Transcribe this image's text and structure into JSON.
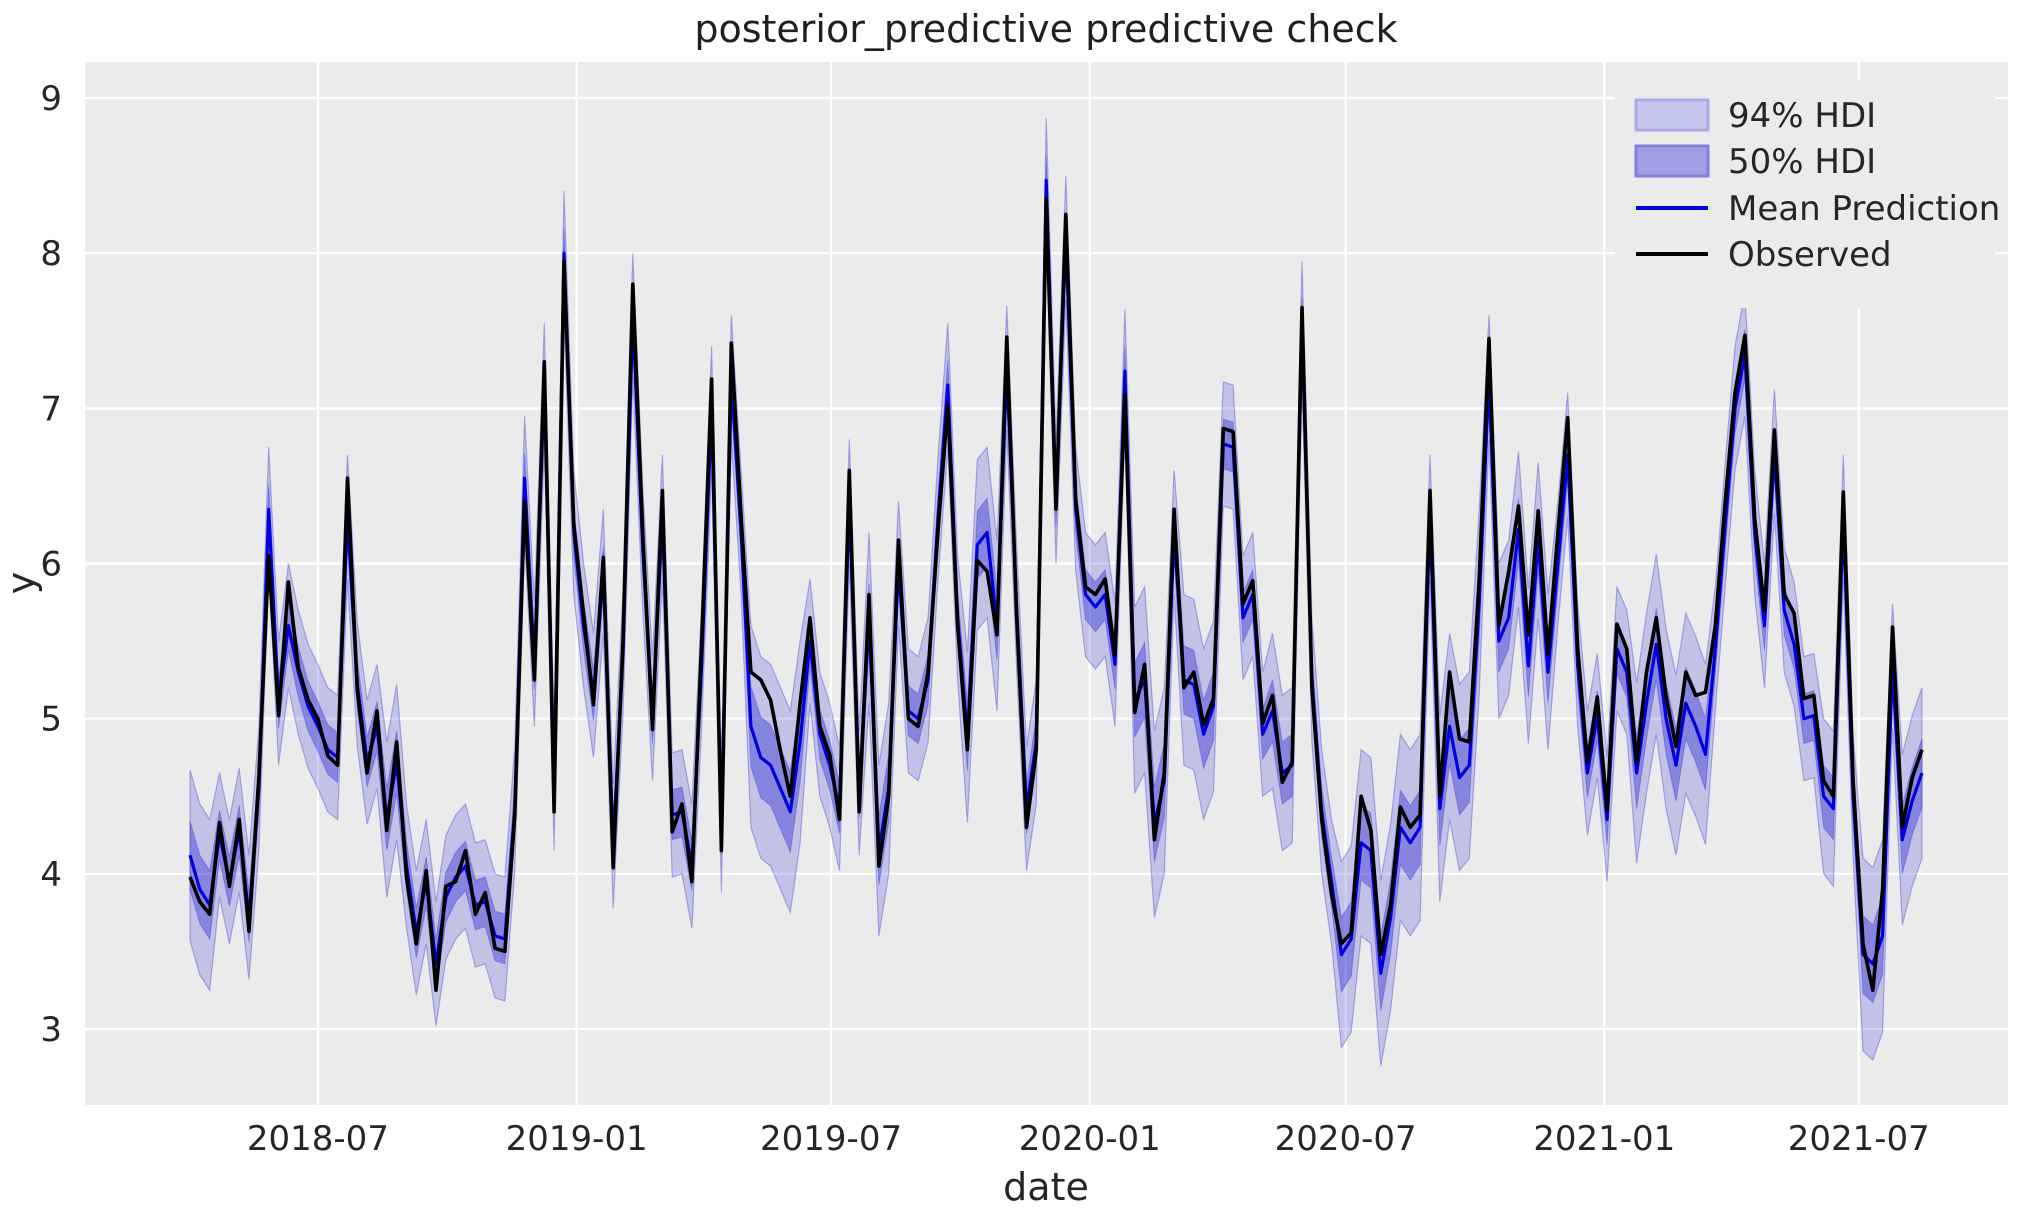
{
  "chart_data": {
    "type": "line",
    "title": "posterior_predictive predictive check",
    "xlabel": "date",
    "ylabel": "y",
    "x_tick_labels": [
      "2018-07",
      "2019-01",
      "2019-07",
      "2020-01",
      "2020-07",
      "2021-01",
      "2021-07"
    ],
    "y_tick_labels": [
      "3",
      "4",
      "5",
      "6",
      "7",
      "8",
      "9"
    ],
    "y_ticks": [
      3,
      4,
      5,
      6,
      7,
      8,
      9
    ],
    "ylim": [
      2.5,
      9.25
    ],
    "grid": "on",
    "legend_position": "upper right",
    "series_meta": {
      "start_date": "2018-04-01",
      "frequency_days": 7,
      "n_points": 177
    },
    "legend": [
      {
        "label": "94% HDI",
        "type": "band"
      },
      {
        "label": "50% HDI",
        "type": "band"
      },
      {
        "label": "Mean Prediction",
        "type": "line"
      },
      {
        "label": "Observed",
        "type": "line"
      }
    ],
    "series": [
      {
        "name": "Observed",
        "values": [
          3.98,
          3.82,
          3.74,
          4.33,
          3.92,
          4.35,
          3.63,
          4.63,
          6.05,
          5.02,
          5.88,
          5.33,
          5.12,
          5.0,
          4.76,
          4.7,
          6.55,
          5.18,
          4.65,
          5.05,
          4.28,
          4.85,
          3.98,
          3.55,
          4.02,
          3.25,
          3.92,
          3.95,
          4.15,
          3.74,
          3.88,
          3.52,
          3.5,
          4.38,
          6.4,
          5.25,
          7.3,
          4.4,
          7.95,
          6.25,
          5.67,
          5.09,
          6.04,
          4.04,
          5.5,
          7.8,
          6.2,
          4.93,
          6.47,
          4.27,
          4.45,
          3.95,
          5.5,
          7.19,
          4.15,
          7.42,
          6.3,
          5.3,
          5.25,
          5.12,
          4.79,
          4.5,
          5.1,
          5.65,
          4.95,
          4.77,
          4.35,
          6.6,
          4.4,
          5.8,
          4.05,
          4.5,
          6.15,
          5.0,
          4.95,
          5.3,
          6.2,
          7.02,
          5.6,
          4.8,
          6.02,
          5.95,
          5.54,
          7.46,
          5.67,
          4.3,
          4.8,
          8.35,
          6.35,
          8.25,
          6.41,
          5.85,
          5.8,
          5.9,
          5.41,
          7.09,
          5.04,
          5.35,
          4.22,
          4.65,
          6.35,
          5.2,
          5.3,
          4.96,
          5.13,
          6.87,
          6.85,
          5.74,
          5.89,
          4.97,
          5.15,
          4.59,
          4.72,
          7.65,
          5.2,
          4.35,
          3.87,
          3.55,
          3.62,
          4.5,
          4.28,
          3.48,
          3.8,
          4.43,
          4.3,
          4.38,
          6.47,
          4.5,
          5.3,
          4.87,
          4.85,
          5.9,
          7.45,
          5.6,
          5.95,
          6.37,
          5.54,
          6.34,
          5.42,
          6.2,
          6.94,
          5.46,
          4.72,
          5.14,
          4.41,
          5.61,
          5.45,
          4.72,
          5.3,
          5.65,
          5.14,
          4.82,
          5.3,
          5.15,
          5.17,
          5.6,
          6.4,
          7.1,
          7.47,
          6.29,
          5.7,
          6.86,
          5.8,
          5.68,
          5.13,
          5.15,
          4.6,
          4.5,
          6.46,
          4.6,
          3.55,
          3.25,
          3.9,
          5.59,
          4.3,
          4.62,
          4.8
        ]
      },
      {
        "name": "Mean Prediction",
        "values": [
          4.12,
          3.9,
          3.8,
          4.25,
          3.95,
          4.28,
          3.72,
          4.55,
          6.35,
          5.1,
          5.6,
          5.3,
          5.08,
          4.95,
          4.8,
          4.75,
          6.3,
          5.22,
          4.72,
          4.95,
          4.35,
          4.72,
          4.05,
          3.62,
          3.95,
          3.42,
          3.85,
          3.98,
          4.05,
          3.8,
          3.82,
          3.6,
          3.58,
          4.42,
          6.55,
          5.35,
          7.15,
          4.55,
          8.0,
          6.2,
          5.6,
          5.15,
          5.95,
          4.18,
          5.42,
          7.6,
          6.1,
          5.0,
          6.3,
          4.38,
          4.4,
          4.05,
          5.35,
          7.0,
          4.28,
          7.2,
          6.2,
          4.95,
          4.75,
          4.7,
          4.55,
          4.4,
          4.85,
          5.5,
          4.9,
          4.7,
          4.42,
          6.4,
          4.52,
          5.65,
          4.15,
          4.55,
          6.0,
          5.05,
          5.0,
          5.25,
          6.28,
          7.15,
          5.65,
          4.88,
          6.12,
          6.2,
          5.6,
          7.26,
          5.72,
          4.42,
          4.85,
          8.47,
          6.4,
          8.1,
          6.35,
          5.8,
          5.72,
          5.8,
          5.35,
          7.24,
          5.12,
          5.25,
          4.32,
          4.6,
          6.2,
          5.25,
          5.22,
          4.9,
          5.08,
          6.77,
          6.75,
          5.65,
          5.8,
          4.9,
          5.05,
          4.65,
          4.7,
          7.55,
          5.25,
          4.4,
          3.95,
          3.48,
          3.58,
          4.2,
          4.15,
          3.36,
          3.72,
          4.3,
          4.2,
          4.3,
          6.3,
          4.42,
          4.95,
          4.62,
          4.7,
          5.75,
          7.2,
          5.5,
          5.65,
          6.22,
          5.34,
          6.15,
          5.3,
          6.0,
          6.7,
          5.35,
          4.65,
          5.02,
          4.35,
          5.45,
          5.3,
          4.65,
          5.1,
          5.48,
          5.0,
          4.7,
          5.1,
          4.95,
          4.77,
          5.45,
          6.25,
          7.0,
          7.35,
          6.2,
          5.6,
          6.72,
          5.7,
          5.48,
          5.0,
          5.02,
          4.5,
          4.42,
          6.3,
          4.5,
          3.48,
          3.42,
          3.6,
          5.34,
          4.22,
          4.47,
          4.65
        ]
      }
    ],
    "hdi94_halfwidth_default": 0.4,
    "hdi50_halfwidth_default": 0.16,
    "hdi_wide_ranges": [
      [
        0,
        2,
        0.55,
        0.22
      ],
      [
        20,
        21,
        0.5,
        0.2
      ],
      [
        57,
        62,
        0.65,
        0.26
      ],
      [
        69,
        71,
        0.55,
        0.22
      ],
      [
        79,
        82,
        0.55,
        0.22
      ],
      [
        96,
        99,
        0.6,
        0.24
      ],
      [
        101,
        104,
        0.55,
        0.22
      ],
      [
        110,
        112,
        0.5,
        0.2
      ],
      [
        117,
        125,
        0.6,
        0.24
      ],
      [
        127,
        131,
        0.6,
        0.24
      ],
      [
        133,
        138,
        0.5,
        0.2
      ],
      [
        147,
        154,
        0.58,
        0.23
      ],
      [
        166,
        167,
        0.5,
        0.2
      ],
      [
        170,
        172,
        0.62,
        0.25
      ],
      [
        174,
        176,
        0.55,
        0.22
      ]
    ],
    "colors": {
      "axes_background": "#ebebeb",
      "grid": "#ffffff",
      "observed_line": "#000000",
      "mean_line": "#0000dd",
      "hdi94_fill": "rgba(50,50,215,0.22)",
      "hdi50_fill": "rgba(50,50,215,0.42)",
      "hdi_edge": "rgba(50,50,215,0.35)",
      "legend94_fill": "#c6c7f0",
      "legend94_edge": "#a9aae6",
      "legend50_fill": "#9e9fe4",
      "legend50_edge": "#8183d6",
      "text": "#262626"
    }
  }
}
